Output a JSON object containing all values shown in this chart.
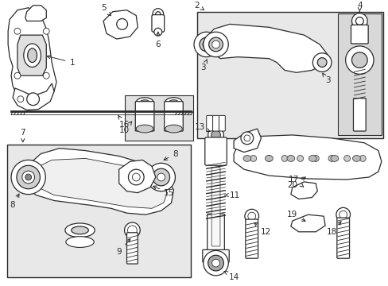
{
  "bg_color": "#ffffff",
  "line_color": "#2a2a2a",
  "box_fill": "#e8e8e8",
  "figsize": [
    4.89,
    3.6
  ],
  "dpi": 100
}
